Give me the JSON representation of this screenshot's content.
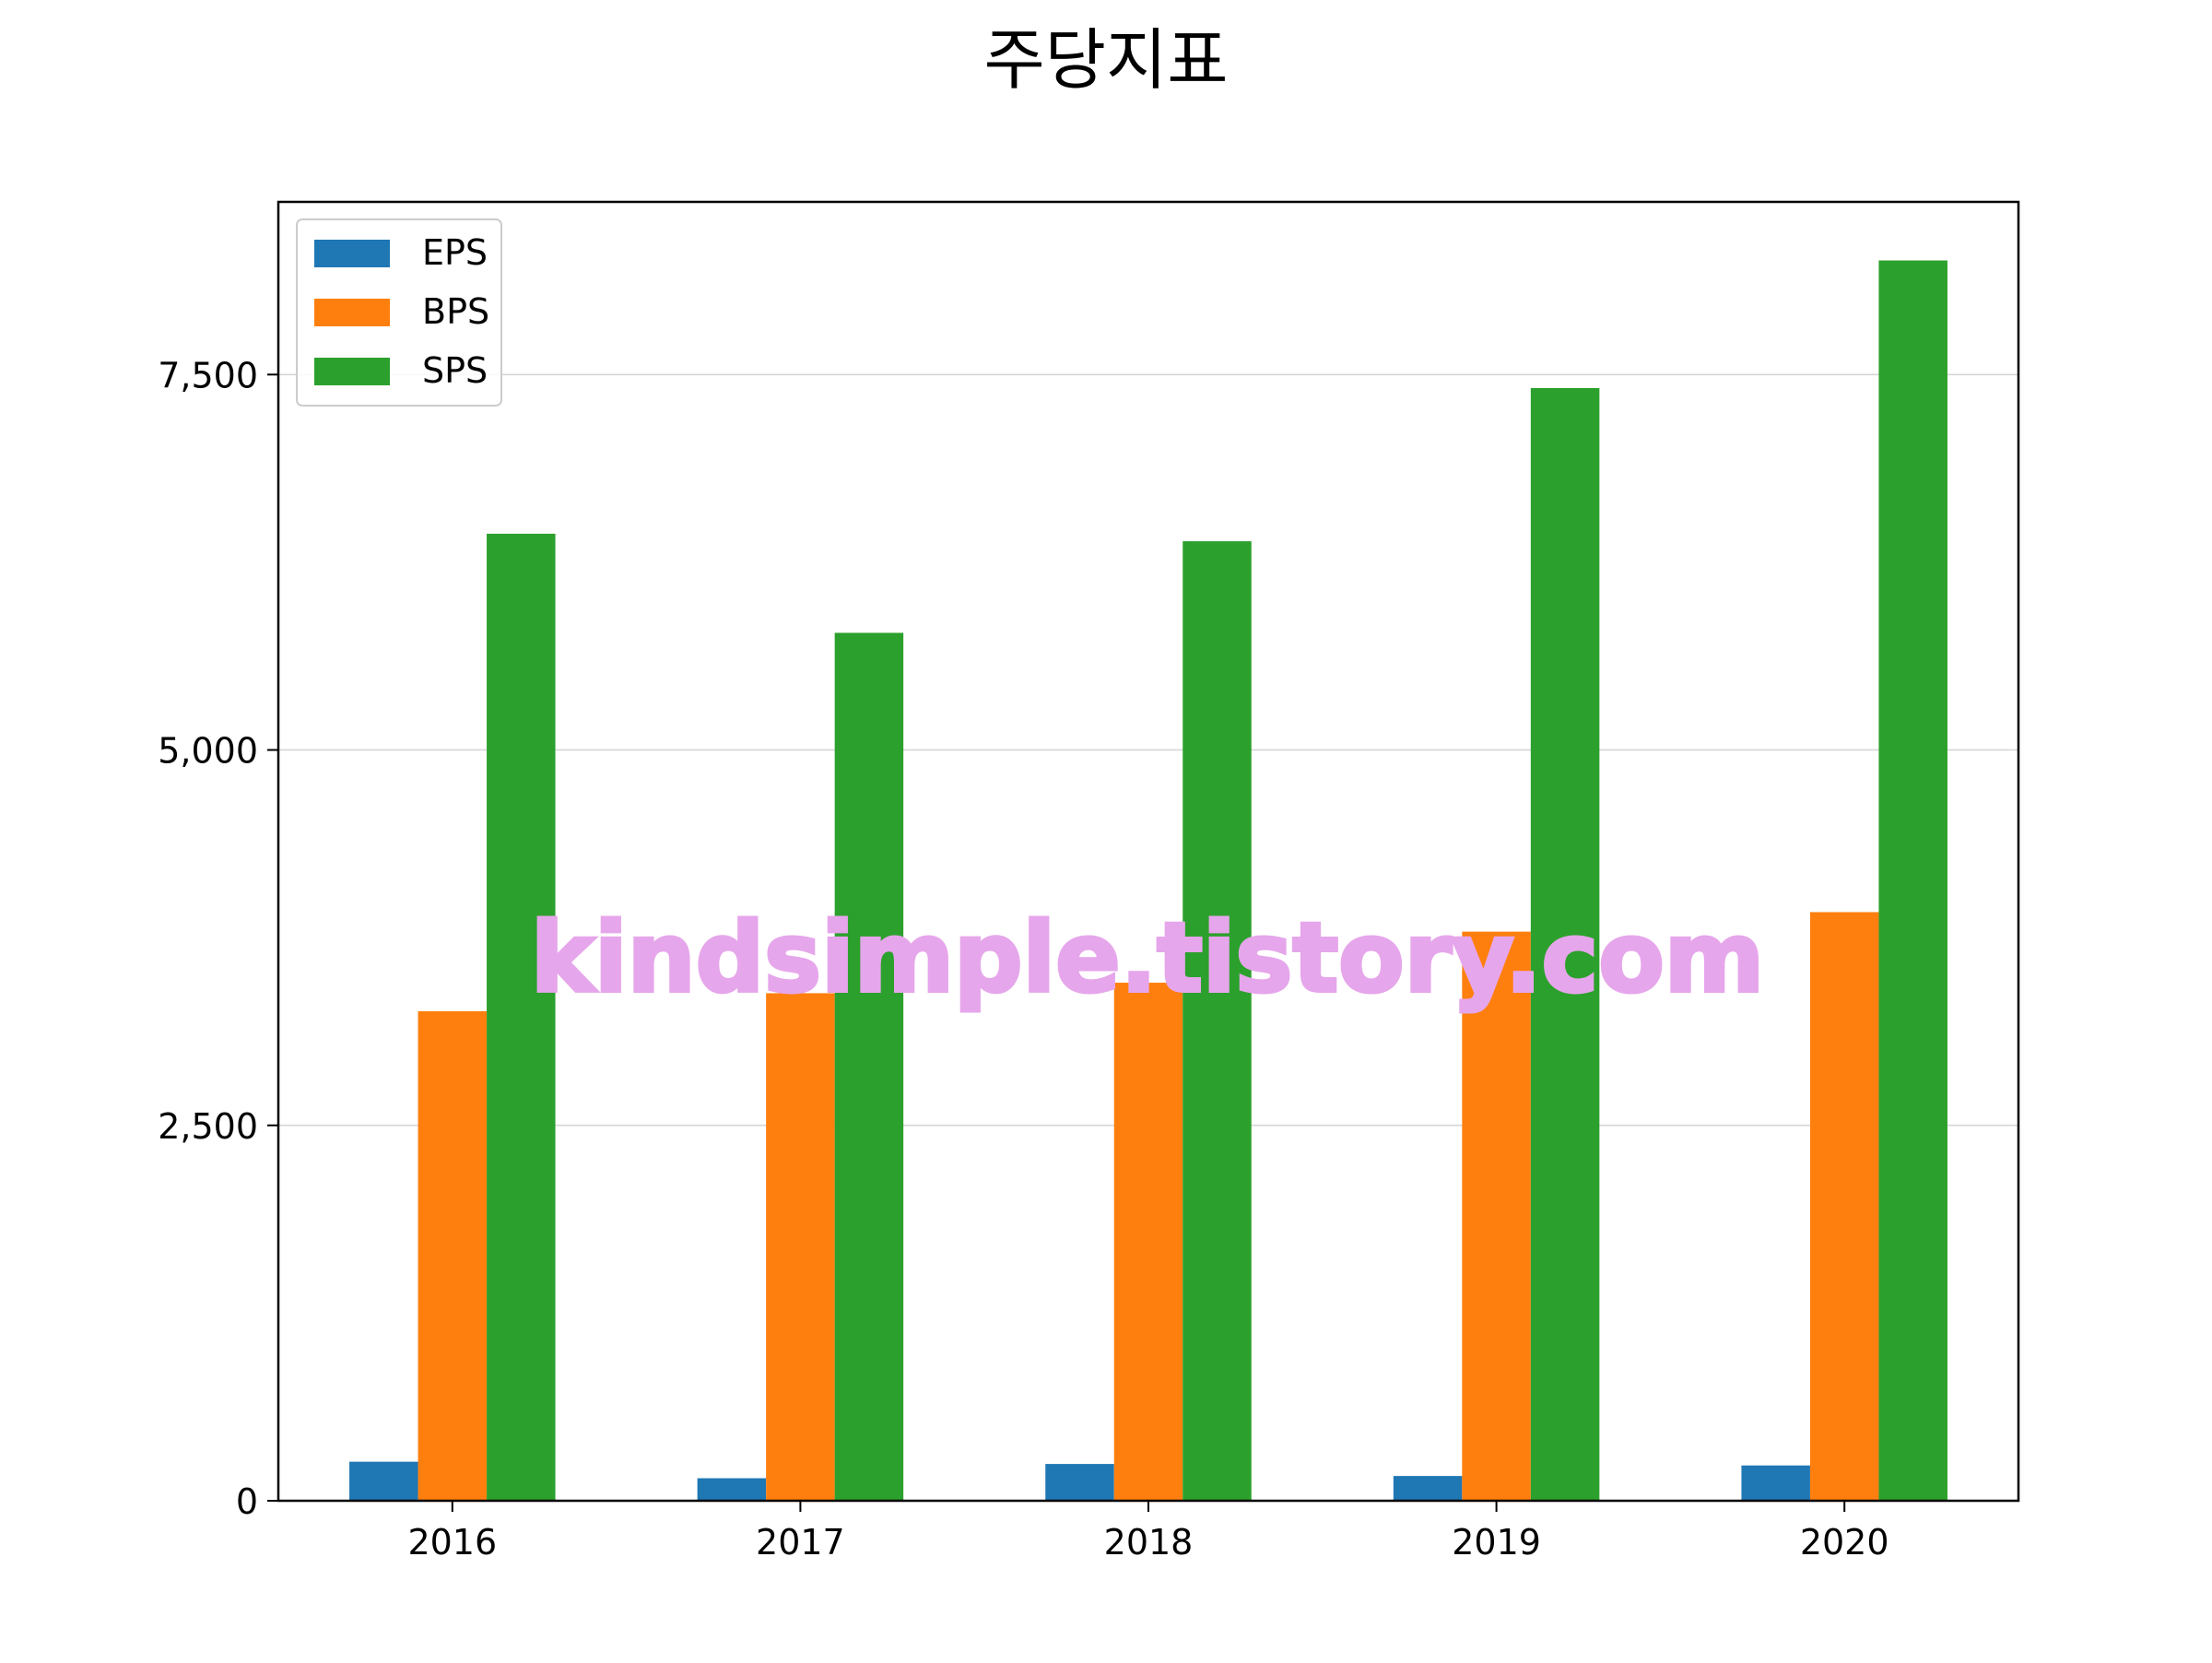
{
  "chart_data": {
    "type": "bar",
    "title": "주당지표",
    "xlabel": "",
    "ylabel": "",
    "categories": [
      "2016",
      "2017",
      "2018",
      "2019",
      "2020"
    ],
    "series": [
      {
        "name": "EPS",
        "color": "#1f77b4",
        "values": [
          260,
          150,
          245,
          165,
          235
        ]
      },
      {
        "name": "BPS",
        "color": "#ff7f0e",
        "values": [
          3260,
          3380,
          3450,
          3790,
          3920
        ]
      },
      {
        "name": "SPS",
        "color": "#2ca02c",
        "values": [
          6440,
          5780,
          6390,
          7410,
          8260
        ]
      }
    ],
    "ylim": [
      0,
      8650
    ],
    "yticks": [
      0,
      2500,
      5000,
      7500
    ],
    "ytick_labels": [
      "0",
      "2,500",
      "5,000",
      "7,500"
    ],
    "grid": {
      "y": true,
      "color": "#d3d3d3"
    },
    "legend_position": "top-left",
    "watermark": {
      "text": "kindsimple.tistory.com",
      "color": "#e6a6eb"
    }
  }
}
